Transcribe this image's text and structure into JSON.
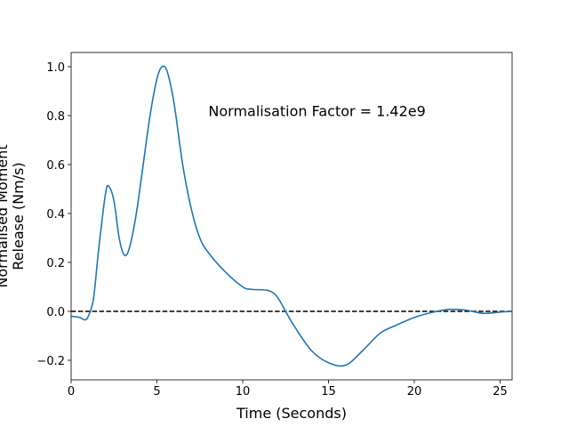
{
  "chart_data": {
    "type": "line",
    "xlabel": "Time (Seconds)",
    "ylabel": [
      "Normalised Moment",
      "Release (Nm/s)"
    ],
    "annotation": "Normalisation Factor = 1.42e9",
    "annotation_at": [
      8,
      0.82
    ],
    "hline": 0,
    "xlim": [
      0,
      25.7
    ],
    "ylim": [
      -0.28,
      1.058
    ],
    "xticks": [
      0,
      5,
      10,
      15,
      20,
      25
    ],
    "yticks": [
      {
        "value": -0.2,
        "label": "−0.2"
      },
      {
        "value": 0,
        "label": "0.0"
      },
      0.2,
      0.4,
      0.6,
      0.8,
      {
        "value": 1,
        "label": "1.0"
      }
    ],
    "series": [
      {
        "color": "#1f77b4",
        "x": [
          0,
          0.5,
          0.8,
          1.0,
          1.3,
          1.6,
          2.0,
          2.2,
          2.5,
          2.8,
          3.1,
          3.4,
          3.8,
          4.2,
          4.6,
          5.0,
          5.3,
          5.6,
          6.0,
          6.5,
          7.0,
          7.5,
          8.0,
          9.0,
          10.0,
          10.5,
          11.5,
          12.0,
          12.5,
          13.0,
          14.0,
          15.0,
          16.0,
          17.0,
          18.0,
          19.0,
          20.0,
          21.0,
          22.0,
          23.0,
          24.0,
          25.0,
          25.7
        ],
        "values": [
          -0.02,
          -0.025,
          -0.035,
          -0.02,
          0.05,
          0.25,
          0.48,
          0.51,
          0.45,
          0.3,
          0.23,
          0.26,
          0.4,
          0.6,
          0.8,
          0.95,
          1.0,
          0.98,
          0.85,
          0.6,
          0.42,
          0.3,
          0.24,
          0.16,
          0.1,
          0.09,
          0.085,
          0.06,
          0.0,
          -0.06,
          -0.16,
          -0.21,
          -0.22,
          -0.16,
          -0.09,
          -0.055,
          -0.025,
          -0.005,
          0.008,
          0.005,
          -0.008,
          -0.003,
          0
        ]
      }
    ]
  }
}
